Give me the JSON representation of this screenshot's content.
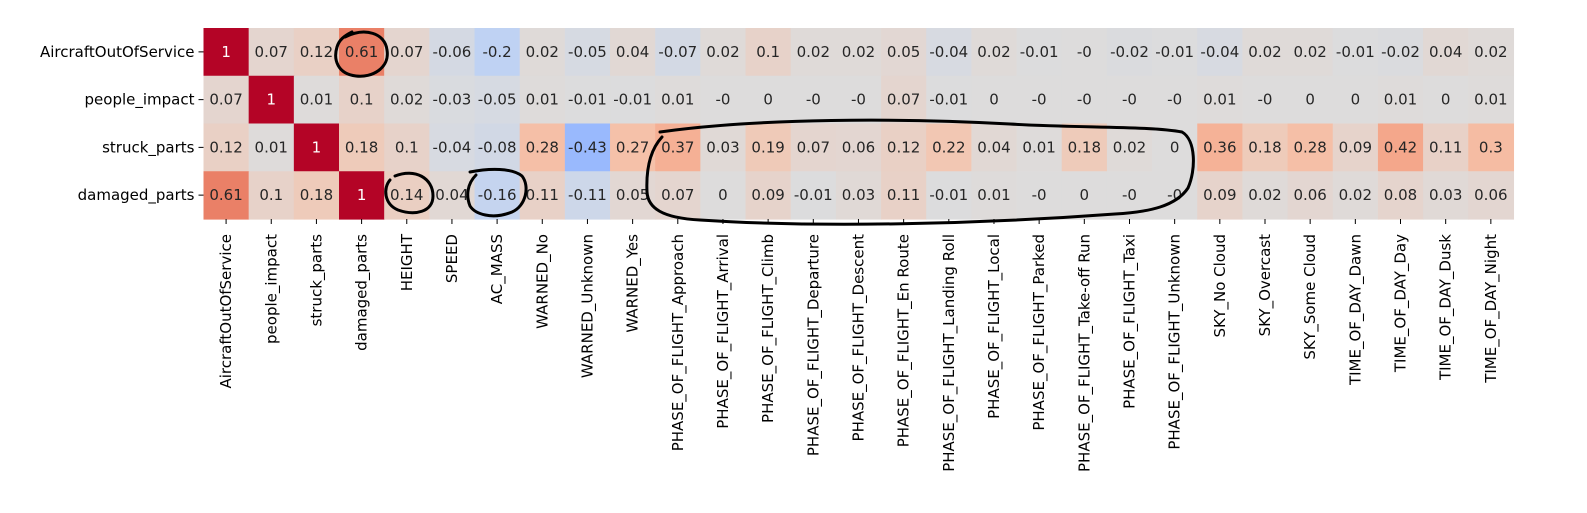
{
  "chart_data": {
    "type": "heatmap",
    "title": "",
    "xlabel": "",
    "ylabel": "",
    "colormap": "coolwarm",
    "value_range": [
      -1,
      1
    ],
    "colorbar": false,
    "x": [
      "AircraftOutOfService",
      "people_impact",
      "struck_parts",
      "damaged_parts",
      "HEIGHT",
      "SPEED",
      "AC_MASS",
      "WARNED_No",
      "WARNED_Unknown",
      "WARNED_Yes",
      "PHASE_OF_FLIGHT_Approach",
      "PHASE_OF_FLIGHT_Arrival",
      "PHASE_OF_FLIGHT_Climb",
      "PHASE_OF_FLIGHT_Departure",
      "PHASE_OF_FLIGHT_Descent",
      "PHASE_OF_FLIGHT_En Route",
      "PHASE_OF_FLIGHT_Landing Roll",
      "PHASE_OF_FLIGHT_Local",
      "PHASE_OF_FLIGHT_Parked",
      "PHASE_OF_FLIGHT_Take-off Run",
      "PHASE_OF_FLIGHT_Taxi",
      "PHASE_OF_FLIGHT_Unknown",
      "SKY_No Cloud",
      "SKY_Overcast",
      "SKY_Some Cloud",
      "TIME_OF_DAY_Dawn",
      "TIME_OF_DAY_Day",
      "TIME_OF_DAY_Dusk",
      "TIME_OF_DAY_Night"
    ],
    "y": [
      "AircraftOutOfService",
      "people_impact",
      "struck_parts",
      "damaged_parts"
    ],
    "values": [
      [
        1,
        0.07,
        0.12,
        0.61,
        0.07,
        -0.06,
        -0.2,
        0.02,
        -0.05,
        0.04,
        -0.07,
        0.02,
        0.1,
        0.02,
        0.02,
        0.05,
        -0.04,
        0.02,
        -0.01,
        0,
        -0.02,
        -0.01,
        -0.04,
        0.02,
        0.02,
        -0.01,
        -0.02,
        0.04,
        0.02
      ],
      [
        0.07,
        1,
        0.01,
        0.1,
        0.02,
        -0.03,
        -0.05,
        0.01,
        -0.01,
        -0.01,
        0.01,
        0,
        0,
        0,
        0,
        0.07,
        -0.01,
        0,
        0,
        0,
        0,
        0,
        0.01,
        0,
        0,
        0,
        0.01,
        0,
        0.01
      ],
      [
        0.12,
        0.01,
        1,
        0.18,
        0.1,
        -0.04,
        -0.08,
        0.28,
        -0.43,
        0.27,
        0.37,
        0.03,
        0.19,
        0.07,
        0.06,
        0.12,
        0.22,
        0.04,
        0.01,
        0.18,
        0.02,
        0,
        0.36,
        0.18,
        0.28,
        0.09,
        0.42,
        0.11,
        0.3
      ],
      [
        0.61,
        0.1,
        0.18,
        1,
        0.14,
        0.04,
        -0.16,
        0.11,
        -0.11,
        0.05,
        0.07,
        0,
        0.09,
        -0.01,
        0.03,
        0.11,
        -0.01,
        0.01,
        0,
        0,
        0,
        0,
        0.09,
        0.02,
        0.06,
        0.02,
        0.08,
        0.03,
        0.06
      ]
    ],
    "annotations": {
      "color": "#000000",
      "shapes": [
        "freehand-circle",
        "freehand-circle",
        "freehand-circle",
        "freehand-loop"
      ],
      "marked_cells": [
        [
          "AircraftOutOfService",
          "damaged_parts"
        ],
        [
          "damaged_parts",
          "HEIGHT"
        ],
        [
          "damaged_parts",
          "AC_MASS"
        ]
      ],
      "marked_region_columns": [
        "PHASE_OF_FLIGHT_Approach",
        "PHASE_OF_FLIGHT_Unknown"
      ],
      "marked_region_rows": [
        "struck_parts",
        "damaged_parts"
      ]
    }
  }
}
